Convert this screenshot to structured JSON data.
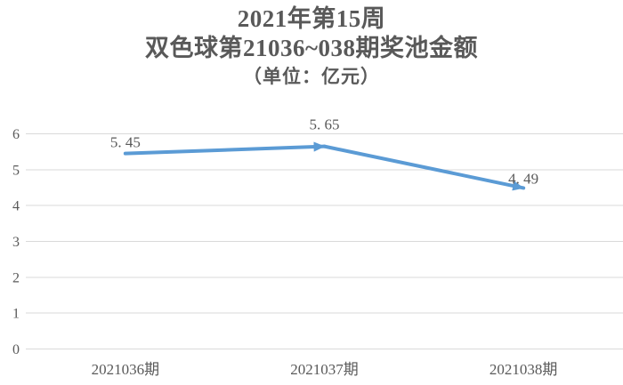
{
  "chart_data": {
    "type": "line",
    "title": "2021年第15周",
    "subtitle": "双色球第21036~038期奖池金额",
    "unit_label": "（单位：亿元）",
    "categories": [
      "2021036期",
      "2021037期",
      "2021038期"
    ],
    "values": [
      5.45,
      5.65,
      4.49
    ],
    "point_labels": [
      "5. 45",
      "5. 65",
      "4. 49"
    ],
    "xlabel": "",
    "ylabel": "",
    "ylim": [
      0,
      6
    ],
    "yticks": [
      0,
      1,
      2,
      3,
      4,
      5,
      6
    ],
    "grid": true,
    "legend": "none",
    "line_end_style": "arrowheads-per-segment",
    "colors": {
      "line": "#5B9BD5",
      "gridline": "#D9D9D9",
      "text": "#595959",
      "background": "#FFFFFF"
    }
  }
}
